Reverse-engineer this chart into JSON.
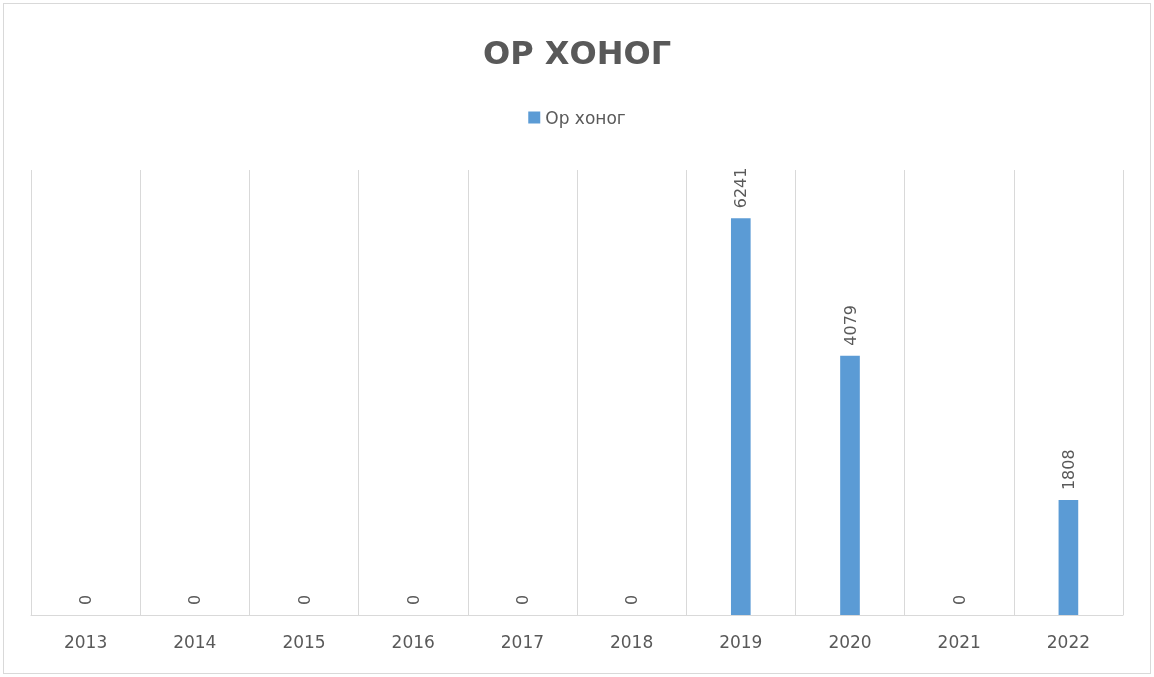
{
  "chart_data": {
    "type": "bar",
    "title": "ОР ХОНОГ",
    "categories": [
      "2013",
      "2014",
      "2015",
      "2016",
      "2017",
      "2018",
      "2019",
      "2020",
      "2021",
      "2022"
    ],
    "series": [
      {
        "name": "Ор хоног",
        "color": "#5b9bd5",
        "values": [
          0,
          0,
          0,
          0,
          0,
          0,
          6241,
          4079,
          0,
          1808
        ]
      }
    ],
    "data_labels": true,
    "grid": "x",
    "legend": "top",
    "tick_labels": "x"
  }
}
